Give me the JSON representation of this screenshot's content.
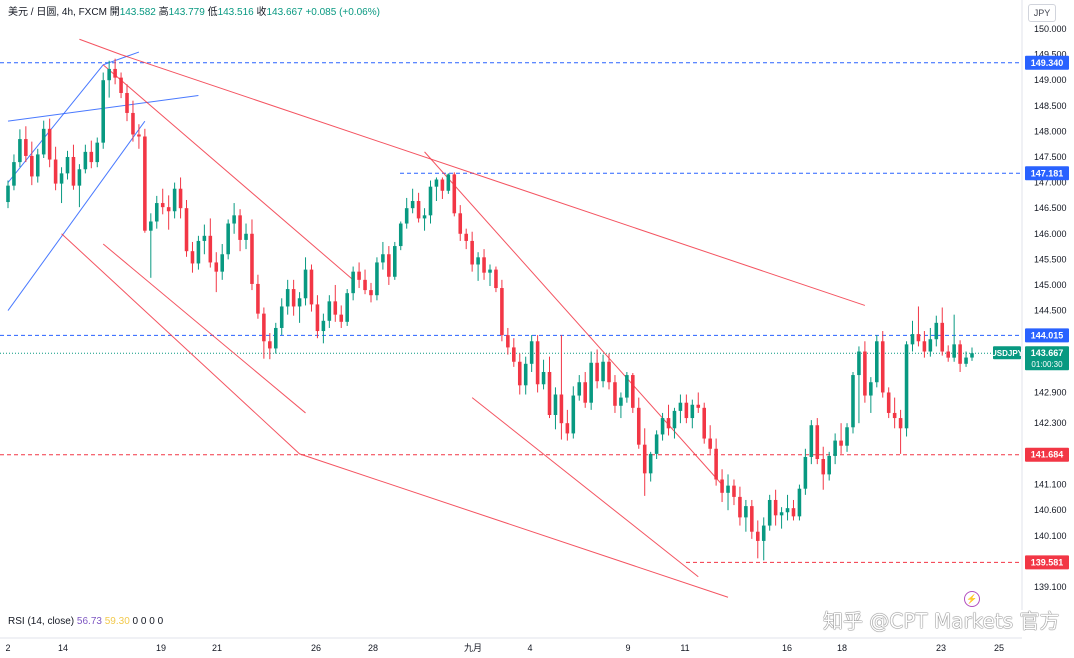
{
  "legend": {
    "title": "美元 / 日圆, 4h, FXCM",
    "open_label": "開",
    "open": "143.582",
    "high_label": "高",
    "high": "143.779",
    "low_label": "低",
    "low": "143.516",
    "close_label": "收",
    "close": "143.667",
    "change": "+0.085 (+0.06%)"
  },
  "currency_button": "JPY",
  "rsi": {
    "label": "RSI (14, close)",
    "value1": "56.73",
    "value2": "59.30",
    "rest": "0 0 0 0"
  },
  "watermark": "知乎 @CPT Markets 官方",
  "flash_icon": "lightning-icon",
  "chart_data": {
    "type": "candlestick",
    "symbol": "USDJPY",
    "ylim": [
      138.8,
      150.3
    ],
    "y_ticks": [
      150.0,
      149.5,
      149.0,
      148.5,
      148.0,
      147.5,
      147.0,
      146.5,
      146.0,
      145.5,
      145.0,
      144.5,
      142.9,
      142.3,
      141.1,
      140.6,
      140.1,
      139.1
    ],
    "y_tick_labels": [
      "150.000",
      "149.500",
      "149.000",
      "148.500",
      "148.000",
      "147.500",
      "147.000",
      "146.500",
      "146.000",
      "145.500",
      "145.000",
      "144.500",
      "142.900",
      "142.300",
      "141.100",
      "140.600",
      "140.100",
      "139.100"
    ],
    "x_tick_labels": [
      "2",
      "14",
      "19",
      "21",
      "26",
      "28",
      "九月",
      "4",
      "9",
      "11",
      "16",
      "18",
      "23",
      "25"
    ],
    "price_levels": [
      {
        "price": 149.34,
        "label": "149.340",
        "color": "#2962ff"
      },
      {
        "price": 147.181,
        "label": "147.181",
        "color": "#2962ff"
      },
      {
        "price": 144.015,
        "label": "144.015",
        "color": "#2962ff"
      },
      {
        "price": 141.684,
        "label": "141.684",
        "color": "#f23645"
      },
      {
        "price": 139.581,
        "label": "139.581",
        "color": "#f23645"
      }
    ],
    "last_price": {
      "symbol": "USDJPY",
      "price": 143.667,
      "label": "143.667",
      "countdown": "01:00:30",
      "color": "#089981"
    },
    "candles": [
      [
        146.62,
        147.04,
        146.5,
        146.94
      ],
      [
        146.94,
        147.55,
        146.85,
        147.4
      ],
      [
        147.4,
        148.04,
        147.3,
        147.85
      ],
      [
        147.85,
        148.1,
        147.4,
        147.52
      ],
      [
        147.52,
        147.8,
        146.95,
        147.12
      ],
      [
        147.12,
        147.66,
        147.0,
        147.55
      ],
      [
        147.55,
        148.21,
        147.48,
        148.05
      ],
      [
        148.05,
        148.25,
        147.3,
        147.45
      ],
      [
        147.45,
        147.7,
        146.85,
        146.98
      ],
      [
        146.98,
        147.3,
        146.6,
        147.18
      ],
      [
        147.18,
        147.62,
        147.06,
        147.5
      ],
      [
        147.5,
        147.74,
        146.86,
        146.94
      ],
      [
        146.94,
        147.36,
        146.52,
        147.26
      ],
      [
        147.26,
        147.74,
        147.18,
        147.6
      ],
      [
        147.6,
        147.82,
        147.28,
        147.4
      ],
      [
        147.4,
        147.88,
        147.3,
        147.78
      ],
      [
        147.78,
        149.15,
        147.66,
        149.0
      ],
      [
        149.0,
        149.38,
        148.66,
        149.22
      ],
      [
        149.22,
        149.42,
        148.92,
        149.05
      ],
      [
        149.05,
        149.15,
        148.65,
        148.75
      ],
      [
        148.75,
        148.92,
        148.2,
        148.36
      ],
      [
        148.36,
        148.6,
        147.8,
        147.94
      ],
      [
        147.94,
        148.14,
        147.66,
        147.9
      ],
      [
        147.9,
        148.05,
        146.02,
        146.06
      ],
      [
        146.06,
        146.4,
        145.14,
        146.24
      ],
      [
        146.24,
        146.74,
        146.1,
        146.6
      ],
      [
        146.6,
        146.88,
        146.38,
        146.52
      ],
      [
        146.52,
        146.75,
        146.08,
        146.44
      ],
      [
        146.44,
        147.0,
        146.3,
        146.88
      ],
      [
        146.88,
        147.1,
        146.3,
        146.5
      ],
      [
        146.5,
        146.66,
        145.55,
        145.66
      ],
      [
        145.66,
        145.84,
        145.24,
        145.42
      ],
      [
        145.42,
        145.96,
        145.3,
        145.86
      ],
      [
        145.86,
        146.18,
        145.6,
        145.96
      ],
      [
        145.96,
        146.3,
        145.34,
        145.44
      ],
      [
        145.44,
        145.64,
        144.86,
        145.26
      ],
      [
        145.26,
        145.8,
        145.1,
        145.6
      ],
      [
        145.6,
        146.28,
        145.5,
        146.2
      ],
      [
        146.2,
        146.6,
        146.0,
        146.36
      ],
      [
        146.36,
        146.48,
        145.66,
        145.88
      ],
      [
        145.88,
        146.2,
        145.7,
        146.0
      ],
      [
        146.0,
        146.28,
        144.9,
        145.02
      ],
      [
        145.02,
        145.2,
        144.34,
        144.44
      ],
      [
        144.44,
        144.56,
        143.56,
        143.9
      ],
      [
        143.9,
        144.06,
        143.55,
        143.76
      ],
      [
        143.76,
        144.26,
        143.66,
        144.16
      ],
      [
        144.16,
        144.74,
        144.02,
        144.58
      ],
      [
        144.58,
        145.1,
        144.42,
        144.92
      ],
      [
        144.92,
        145.1,
        144.4,
        144.58
      ],
      [
        144.58,
        144.86,
        144.26,
        144.74
      ],
      [
        144.74,
        145.54,
        144.6,
        145.3
      ],
      [
        145.3,
        145.4,
        144.48,
        144.62
      ],
      [
        144.62,
        144.8,
        143.96,
        144.1
      ],
      [
        144.1,
        144.44,
        143.86,
        144.3
      ],
      [
        144.3,
        144.8,
        144.16,
        144.68
      ],
      [
        144.68,
        145.0,
        144.28,
        144.42
      ],
      [
        144.42,
        144.6,
        144.16,
        144.28
      ],
      [
        144.28,
        144.92,
        144.2,
        144.84
      ],
      [
        144.84,
        145.36,
        144.7,
        145.26
      ],
      [
        145.26,
        145.44,
        144.94,
        145.1
      ],
      [
        145.1,
        145.3,
        144.82,
        144.9
      ],
      [
        144.9,
        145.04,
        144.66,
        144.8
      ],
      [
        144.8,
        145.54,
        144.7,
        145.44
      ],
      [
        145.44,
        145.84,
        145.3,
        145.6
      ],
      [
        145.6,
        145.76,
        145.0,
        145.16
      ],
      [
        145.16,
        145.84,
        145.1,
        145.76
      ],
      [
        145.76,
        146.24,
        145.68,
        146.2
      ],
      [
        146.2,
        146.7,
        146.1,
        146.5
      ],
      [
        146.5,
        146.88,
        146.4,
        146.64
      ],
      [
        146.64,
        146.8,
        146.22,
        146.3
      ],
      [
        146.3,
        146.5,
        146.06,
        146.36
      ],
      [
        146.36,
        147.04,
        146.2,
        146.92
      ],
      [
        146.92,
        147.1,
        146.64,
        147.06
      ],
      [
        147.06,
        147.1,
        146.68,
        146.84
      ],
      [
        146.84,
        147.18,
        146.78,
        147.16
      ],
      [
        147.16,
        147.2,
        146.34,
        146.4
      ],
      [
        146.4,
        146.56,
        145.86,
        146.0
      ],
      [
        146.0,
        146.1,
        145.7,
        145.86
      ],
      [
        145.86,
        146.04,
        145.26,
        145.4
      ],
      [
        145.4,
        145.64,
        145.08,
        145.54
      ],
      [
        145.54,
        145.7,
        145.1,
        145.24
      ],
      [
        145.24,
        145.4,
        144.98,
        145.3
      ],
      [
        145.3,
        145.36,
        144.86,
        144.94
      ],
      [
        144.94,
        145.1,
        143.9,
        144.02
      ],
      [
        144.02,
        144.16,
        143.64,
        143.78
      ],
      [
        143.78,
        143.96,
        143.4,
        143.5
      ],
      [
        143.5,
        143.66,
        142.86,
        143.04
      ],
      [
        143.04,
        143.6,
        142.86,
        143.46
      ],
      [
        143.46,
        144.02,
        143.3,
        143.9
      ],
      [
        143.9,
        144.02,
        142.9,
        143.06
      ],
      [
        143.06,
        143.54,
        142.96,
        143.3
      ],
      [
        143.3,
        143.6,
        142.4,
        142.46
      ],
      [
        142.46,
        143.0,
        142.18,
        142.86
      ],
      [
        142.86,
        144.02,
        141.98,
        142.3
      ],
      [
        142.3,
        142.56,
        141.96,
        142.1
      ],
      [
        142.1,
        143.02,
        142.0,
        142.84
      ],
      [
        142.84,
        143.24,
        142.74,
        143.1
      ],
      [
        143.1,
        143.3,
        142.6,
        142.7
      ],
      [
        142.7,
        143.7,
        142.56,
        143.48
      ],
      [
        143.48,
        143.74,
        142.98,
        143.12
      ],
      [
        143.12,
        143.64,
        143.0,
        143.5
      ],
      [
        143.5,
        143.66,
        142.96,
        143.1
      ],
      [
        143.1,
        143.24,
        142.5,
        142.64
      ],
      [
        142.64,
        142.9,
        142.4,
        142.8
      ],
      [
        142.8,
        143.3,
        142.7,
        143.24
      ],
      [
        143.24,
        143.28,
        142.5,
        142.6
      ],
      [
        142.6,
        142.8,
        141.8,
        141.88
      ],
      [
        141.88,
        142.2,
        140.88,
        141.32
      ],
      [
        141.32,
        141.74,
        141.16,
        141.7
      ],
      [
        141.7,
        142.16,
        141.6,
        142.08
      ],
      [
        142.08,
        142.5,
        141.96,
        142.4
      ],
      [
        142.4,
        142.66,
        142.06,
        142.2
      ],
      [
        142.2,
        142.6,
        142.0,
        142.54
      ],
      [
        142.54,
        142.86,
        142.3,
        142.7
      ],
      [
        142.7,
        142.86,
        142.3,
        142.4
      ],
      [
        142.4,
        142.76,
        142.2,
        142.66
      ],
      [
        142.66,
        142.9,
        142.5,
        142.6
      ],
      [
        142.6,
        142.7,
        141.9,
        142.0
      ],
      [
        142.0,
        142.26,
        141.7,
        141.8
      ],
      [
        141.8,
        142.0,
        141.08,
        141.2
      ],
      [
        141.2,
        141.4,
        140.76,
        140.94
      ],
      [
        140.94,
        141.3,
        140.6,
        141.08
      ],
      [
        141.08,
        141.2,
        140.7,
        140.86
      ],
      [
        140.86,
        141.06,
        140.3,
        140.46
      ],
      [
        140.46,
        140.8,
        140.18,
        140.68
      ],
      [
        140.68,
        140.8,
        140.04,
        140.18
      ],
      [
        140.18,
        140.4,
        139.66,
        140.0
      ],
      [
        140.0,
        140.46,
        139.62,
        140.3
      ],
      [
        140.3,
        140.9,
        140.2,
        140.8
      ],
      [
        140.8,
        141.0,
        140.3,
        140.5
      ],
      [
        140.5,
        140.66,
        140.24,
        140.56
      ],
      [
        140.56,
        140.9,
        140.4,
        140.64
      ],
      [
        140.64,
        140.8,
        140.4,
        140.48
      ],
      [
        140.48,
        141.1,
        140.4,
        141.02
      ],
      [
        141.02,
        141.8,
        140.9,
        141.64
      ],
      [
        141.64,
        142.36,
        141.5,
        142.26
      ],
      [
        142.26,
        142.4,
        141.5,
        141.6
      ],
      [
        141.6,
        141.84,
        141.0,
        141.3
      ],
      [
        141.3,
        141.74,
        141.18,
        141.66
      ],
      [
        141.66,
        142.1,
        141.5,
        141.96
      ],
      [
        141.96,
        142.3,
        141.7,
        141.86
      ],
      [
        141.86,
        142.3,
        141.74,
        142.22
      ],
      [
        142.22,
        143.3,
        142.1,
        143.24
      ],
      [
        143.24,
        143.8,
        142.3,
        143.7
      ],
      [
        143.7,
        143.9,
        142.7,
        142.84
      ],
      [
        142.84,
        143.2,
        142.5,
        143.1
      ],
      [
        143.1,
        144.02,
        143.0,
        143.9
      ],
      [
        143.9,
        144.1,
        142.8,
        142.9
      ],
      [
        142.9,
        143.0,
        142.4,
        142.5
      ],
      [
        142.5,
        142.8,
        142.2,
        142.4
      ],
      [
        142.4,
        142.56,
        141.7,
        142.2
      ],
      [
        142.2,
        143.9,
        142.04,
        143.84
      ],
      [
        143.84,
        144.3,
        143.7,
        144.04
      ],
      [
        144.04,
        144.58,
        143.8,
        143.9
      ],
      [
        143.9,
        144.1,
        143.58,
        143.7
      ],
      [
        143.7,
        144.16,
        143.6,
        143.94
      ],
      [
        143.94,
        144.4,
        143.8,
        144.26
      ],
      [
        144.26,
        144.56,
        143.62,
        143.7
      ],
      [
        143.7,
        143.82,
        143.5,
        143.58
      ],
      [
        143.58,
        144.42,
        143.5,
        143.84
      ],
      [
        143.84,
        143.92,
        143.3,
        143.46
      ],
      [
        143.46,
        143.7,
        143.4,
        143.582
      ],
      [
        143.582,
        143.779,
        143.516,
        143.667
      ]
    ],
    "trend_lines": [
      {
        "color": "#2962ff",
        "points": [
          [
            0,
            147.0
          ],
          [
            16,
            149.3
          ],
          [
            22,
            149.55
          ]
        ]
      },
      {
        "color": "#2962ff",
        "points": [
          [
            0,
            148.2
          ],
          [
            32,
            148.7
          ]
        ]
      },
      {
        "color": "#2962ff",
        "points": [
          [
            0,
            144.5
          ],
          [
            23,
            148.2
          ]
        ]
      },
      {
        "color": "#f23645",
        "points": [
          [
            12,
            149.8
          ],
          [
            19,
            149.5
          ],
          [
            144,
            144.6
          ]
        ]
      },
      {
        "color": "#f23645",
        "points": [
          [
            16,
            149.3
          ],
          [
            58,
            145.1
          ]
        ]
      },
      {
        "color": "#f23645",
        "points": [
          [
            9,
            146.0
          ],
          [
            49,
            141.7
          ],
          [
            121,
            138.9
          ]
        ]
      },
      {
        "color": "#f23645",
        "points": [
          [
            16,
            145.8
          ],
          [
            50,
            142.5
          ]
        ]
      },
      {
        "color": "#f23645",
        "points": [
          [
            70,
            147.6
          ],
          [
            120,
            141.1
          ]
        ]
      },
      {
        "color": "#f23645",
        "points": [
          [
            78,
            142.8
          ],
          [
            116,
            139.3
          ]
        ]
      }
    ]
  }
}
